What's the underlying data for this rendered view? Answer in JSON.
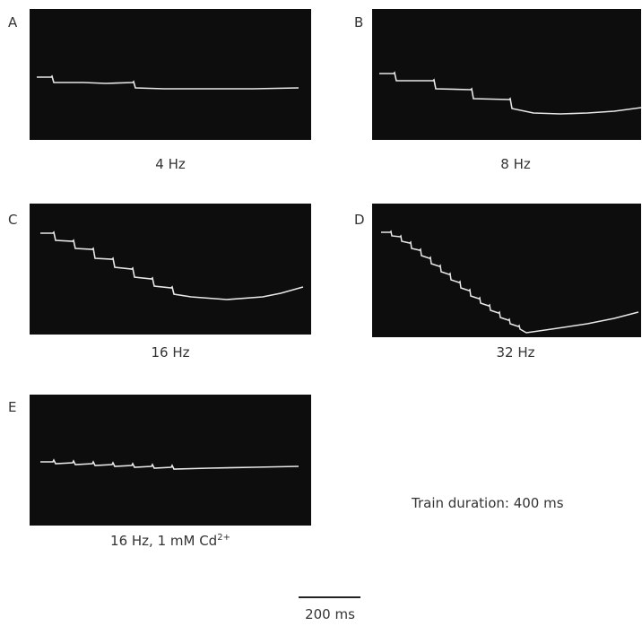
{
  "panels": [
    {
      "letter": "A",
      "caption": "4 Hz"
    },
    {
      "letter": "B",
      "caption": "8 Hz"
    },
    {
      "letter": "C",
      "caption": "16 Hz"
    },
    {
      "letter": "D",
      "caption": "32 Hz"
    },
    {
      "letter": "E",
      "caption_main": "16 Hz, 1 mM Cd",
      "caption_sup": "2+"
    }
  ],
  "train_note": "Train duration: 400 ms",
  "scale_label": "200 ms",
  "trace_color": "#e8e8e8"
}
